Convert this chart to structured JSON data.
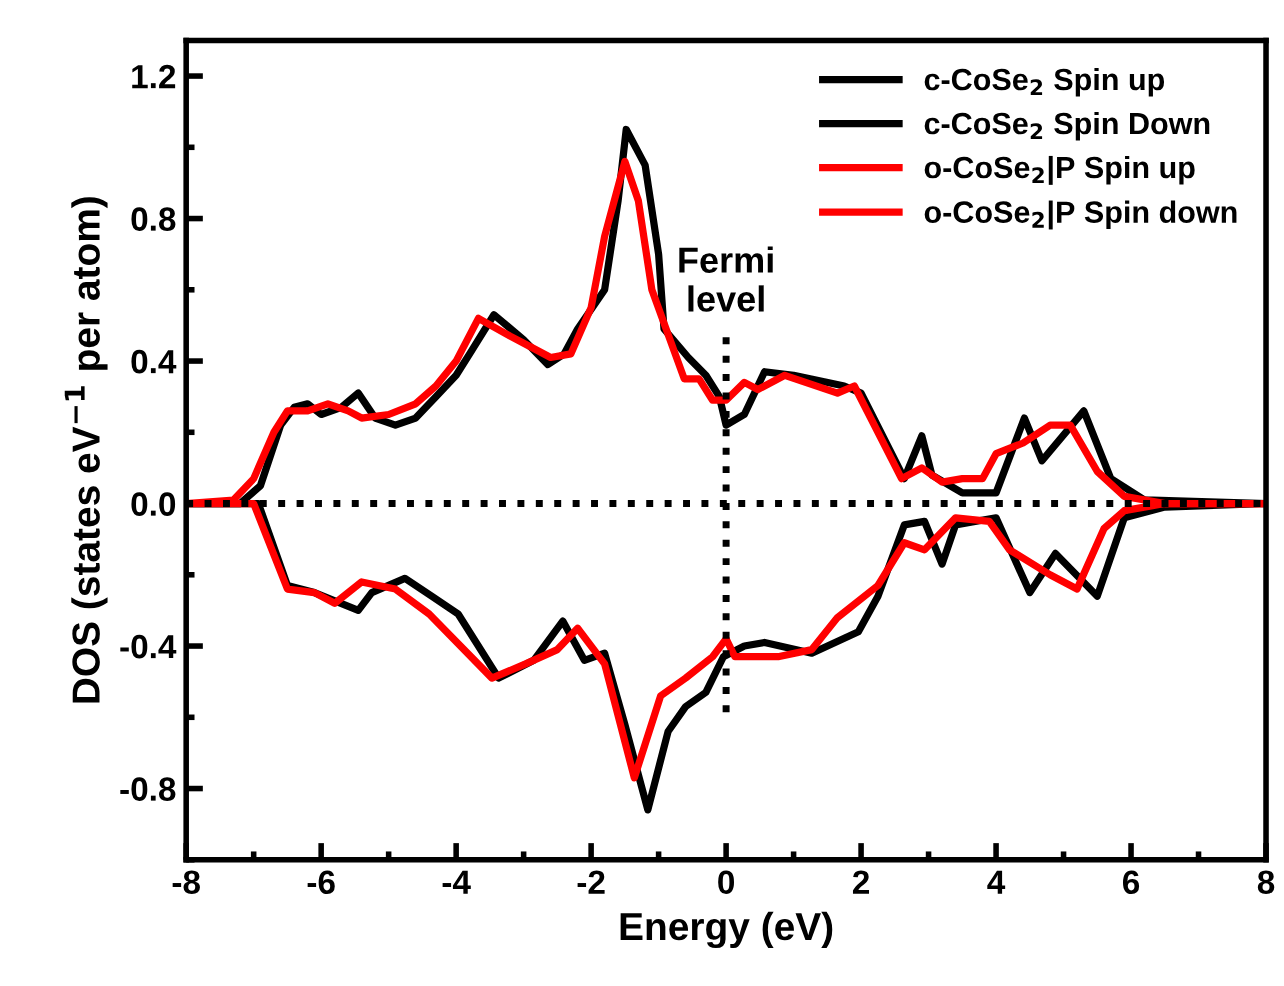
{
  "chart_data": {
    "type": "line",
    "xlabel": "Energy (eV)",
    "ylabel": "DOS (states eV$^{−1}$ per atom)",
    "xlim": [
      -8,
      8
    ],
    "xticks": [
      -8,
      -6,
      -4,
      -2,
      0,
      2,
      4,
      6,
      8
    ],
    "ylim": [
      -1.0,
      1.3
    ],
    "yticks": [
      -0.8,
      -0.4,
      {
        "value": 0,
        "label": "0.0"
      },
      0.4,
      0.8,
      1.2
    ],
    "grid": false,
    "legend": "top right",
    "line_style": "solid",
    "marker": "none",
    "ref_lines": [
      {
        "axis": "y",
        "value": 0,
        "line_style": "dotted",
        "color": "#000000"
      },
      {
        "axis": "x",
        "value": 0,
        "label": "Fermi\nlevel",
        "line_style": "dotted",
        "color": "#000000"
      }
    ],
    "series": [
      {
        "name": "c-CoSe$_{2}$ Spin up",
        "color": "#000000",
        "x": [
          -8,
          -7.2,
          -6.9,
          -6.6,
          -6.4,
          -6.2,
          -6.0,
          -5.7,
          -5.45,
          -5.2,
          -4.9,
          -4.6,
          -4.3,
          -4.0,
          -3.8,
          -3.44,
          -3.0,
          -2.64,
          -2.4,
          -2.2,
          -1.8,
          -1.6,
          -1.48,
          -1.2,
          -1.0,
          -0.92,
          -0.56,
          -0.3,
          -0.1,
          0.0,
          0.27,
          0.57,
          1.0,
          1.75,
          2.0,
          2.64,
          2.9,
          3.05,
          3.5,
          4.0,
          4.42,
          4.68,
          5.3,
          5.7,
          6.2,
          8
        ],
        "values": [
          0,
          0,
          0.05,
          0.22,
          0.27,
          0.28,
          0.25,
          0.27,
          0.31,
          0.24,
          0.22,
          0.24,
          0.3,
          0.36,
          0.42,
          0.53,
          0.46,
          0.39,
          0.42,
          0.49,
          0.6,
          0.85,
          1.05,
          0.95,
          0.7,
          0.49,
          0.41,
          0.36,
          0.3,
          0.22,
          0.25,
          0.37,
          0.36,
          0.33,
          0.31,
          0.07,
          0.19,
          0.08,
          0.03,
          0.03,
          0.24,
          0.12,
          0.26,
          0.07,
          0.01,
          0
        ]
      },
      {
        "name": "c-CoSe$_{2}$ Spin Down",
        "color": "#000000",
        "x": [
          -8,
          -6.93,
          -6.5,
          -6.1,
          -5.45,
          -5.25,
          -4.76,
          -4.36,
          -3.97,
          -3.37,
          -2.85,
          -2.42,
          -2.1,
          -1.8,
          -1.5,
          -1.16,
          -0.86,
          -0.6,
          -0.3,
          -0.04,
          0.27,
          0.57,
          1.27,
          1.96,
          2.25,
          2.64,
          2.94,
          3.2,
          3.4,
          4.0,
          4.5,
          4.88,
          5.5,
          5.9,
          6.5,
          8
        ],
        "values": [
          0,
          0,
          -0.23,
          -0.25,
          -0.3,
          -0.25,
          -0.21,
          -0.26,
          -0.31,
          -0.49,
          -0.44,
          -0.33,
          -0.44,
          -0.42,
          -0.62,
          -0.86,
          -0.64,
          -0.57,
          -0.53,
          -0.43,
          -0.4,
          -0.39,
          -0.42,
          -0.36,
          -0.26,
          -0.06,
          -0.05,
          -0.17,
          -0.06,
          -0.04,
          -0.25,
          -0.14,
          -0.26,
          -0.04,
          -0.01,
          0
        ]
      },
      {
        "name": "o-CoSe$_{2}$|P Spin up",
        "color": "#ff0000",
        "x": [
          -8,
          -7.3,
          -7.0,
          -6.7,
          -6.5,
          -6.2,
          -5.9,
          -5.6,
          -5.4,
          -5.0,
          -4.6,
          -4.3,
          -4.0,
          -3.67,
          -3.2,
          -2.9,
          -2.6,
          -2.3,
          -2.0,
          -1.8,
          -1.5,
          -1.3,
          -1.1,
          -0.62,
          -0.4,
          -0.2,
          0.0,
          0.27,
          0.47,
          0.87,
          1.65,
          1.9,
          2.6,
          2.9,
          3.2,
          3.5,
          3.8,
          4.0,
          4.4,
          4.8,
          5.1,
          5.5,
          5.9,
          6.5,
          8
        ],
        "values": [
          0,
          0.01,
          0.07,
          0.2,
          0.26,
          0.26,
          0.28,
          0.26,
          0.24,
          0.25,
          0.28,
          0.33,
          0.4,
          0.52,
          0.47,
          0.44,
          0.41,
          0.42,
          0.55,
          0.75,
          0.96,
          0.85,
          0.6,
          0.35,
          0.35,
          0.29,
          0.29,
          0.34,
          0.32,
          0.36,
          0.31,
          0.33,
          0.07,
          0.1,
          0.06,
          0.07,
          0.07,
          0.14,
          0.17,
          0.22,
          0.22,
          0.09,
          0.02,
          0,
          0
        ]
      },
      {
        "name": "o-CoSe$_{2}$|P Spin down",
        "color": "#ff0000",
        "x": [
          -8,
          -7.0,
          -6.5,
          -6.1,
          -5.8,
          -5.4,
          -4.9,
          -4.4,
          -3.47,
          -2.97,
          -2.5,
          -2.2,
          -1.8,
          -1.36,
          -0.97,
          -0.6,
          -0.2,
          0.0,
          0.13,
          0.77,
          1.27,
          1.65,
          2.25,
          2.64,
          2.94,
          3.4,
          3.9,
          4.2,
          4.8,
          5.2,
          5.6,
          5.9,
          6.5,
          8
        ],
        "values": [
          0,
          0,
          -0.24,
          -0.25,
          -0.28,
          -0.22,
          -0.24,
          -0.31,
          -0.49,
          -0.45,
          -0.41,
          -0.35,
          -0.45,
          -0.77,
          -0.54,
          -0.49,
          -0.43,
          -0.38,
          -0.43,
          -0.43,
          -0.41,
          -0.32,
          -0.23,
          -0.11,
          -0.13,
          -0.04,
          -0.05,
          -0.13,
          -0.2,
          -0.24,
          -0.07,
          -0.02,
          0,
          0
        ]
      }
    ]
  }
}
